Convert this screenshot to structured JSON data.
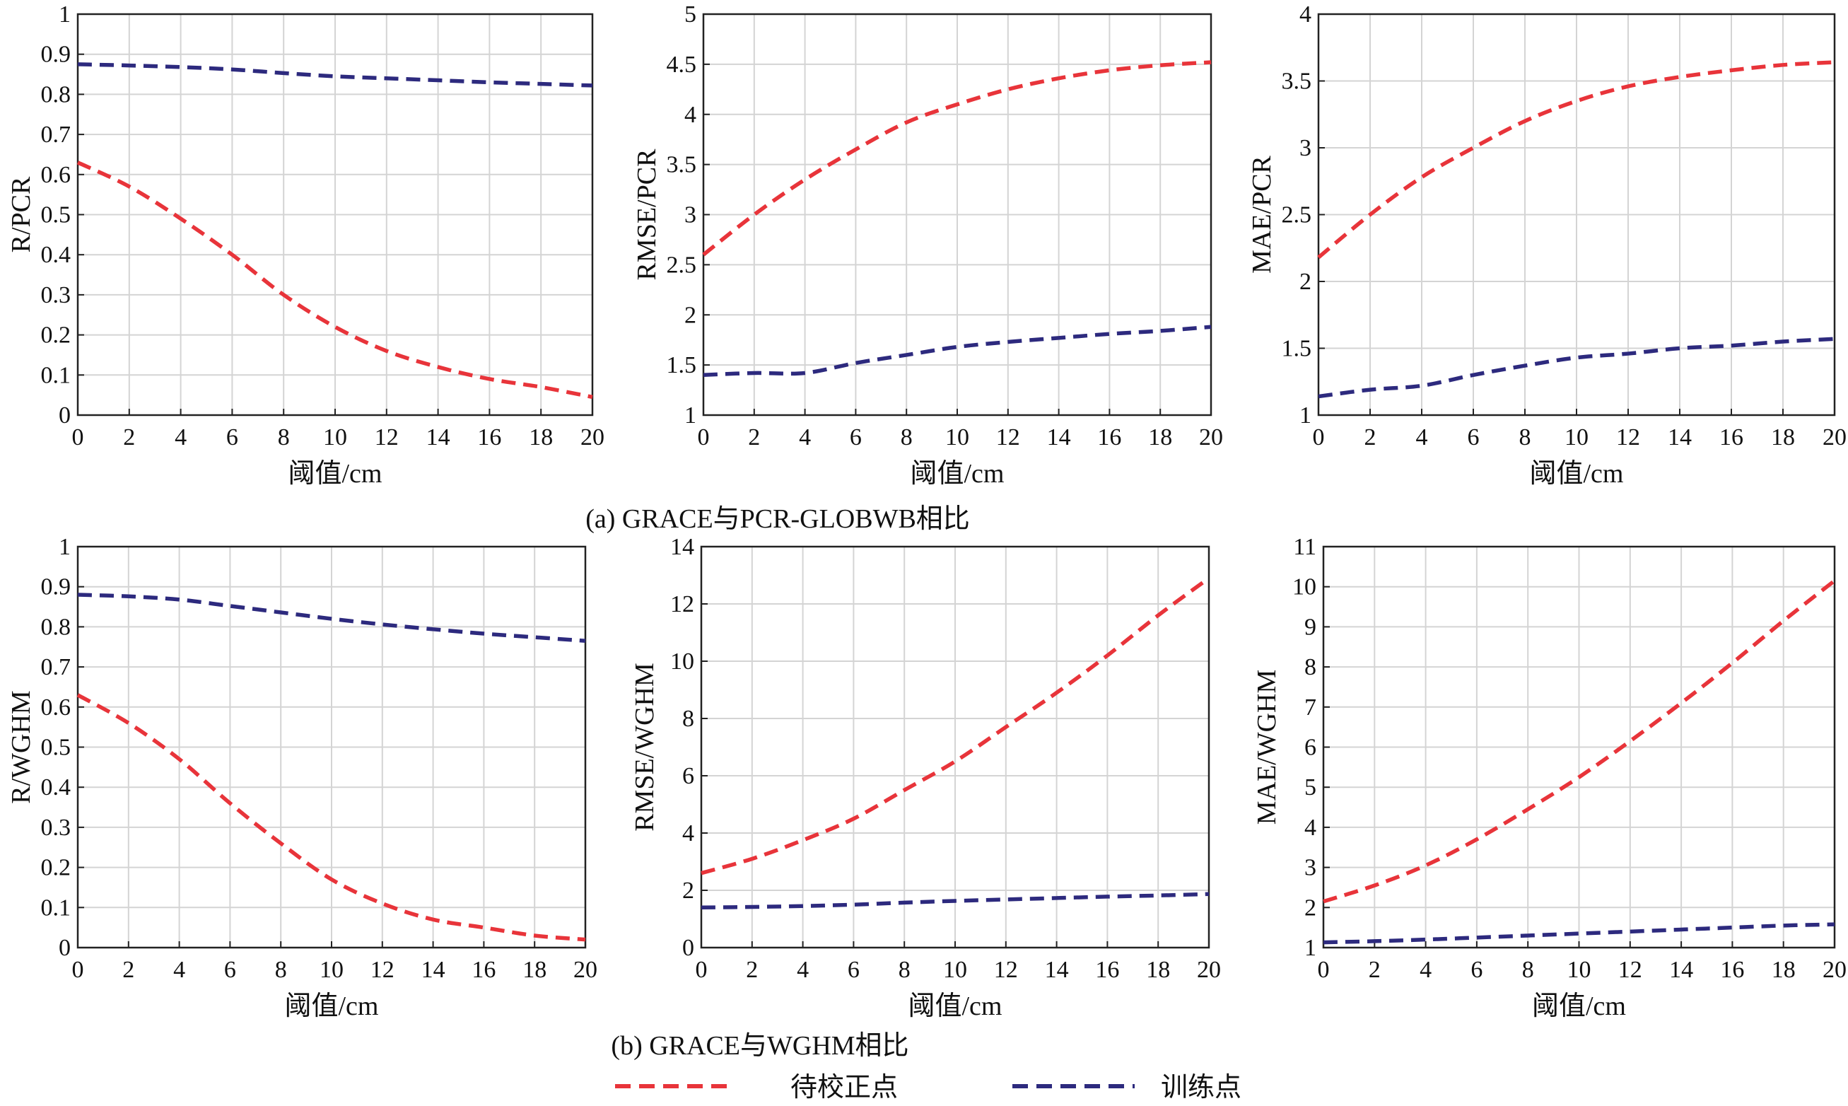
{
  "figure": {
    "caption_a": "(a) GRACE与PCR-GLOBWB相比",
    "caption_b": "(b) GRACE与WGHM相比"
  },
  "legend": {
    "items": [
      {
        "label": "待校正点",
        "color": "#e8343a"
      },
      {
        "label": "训练点",
        "color": "#2d2a7e"
      }
    ]
  },
  "colors": {
    "series_a": "#e8343a",
    "series_b": "#2d2a7e",
    "grid": "#d4d4d4",
    "axes": "#222222"
  },
  "chart_data": [
    {
      "type": "line",
      "xlabel": "阈值/cm",
      "ylabel": "R/PCR",
      "xlim": [
        0,
        20
      ],
      "ylim": [
        0,
        1
      ],
      "xticks": [
        0,
        2,
        4,
        6,
        8,
        10,
        12,
        14,
        16,
        18,
        20
      ],
      "yticks": [
        0,
        0.1,
        0.2,
        0.3,
        0.4,
        0.5,
        0.6,
        0.7,
        0.8,
        0.9,
        1
      ],
      "grid": true,
      "x": [
        0,
        2,
        4,
        6,
        8,
        10,
        12,
        14,
        16,
        18,
        20
      ],
      "series": [
        {
          "name": "待校正点",
          "values": [
            0.63,
            0.57,
            0.49,
            0.4,
            0.3,
            0.22,
            0.16,
            0.12,
            0.09,
            0.07,
            0.045
          ]
        },
        {
          "name": "训练点",
          "values": [
            0.875,
            0.872,
            0.868,
            0.862,
            0.853,
            0.845,
            0.84,
            0.835,
            0.83,
            0.826,
            0.822
          ]
        }
      ]
    },
    {
      "type": "line",
      "xlabel": "阈值/cm",
      "ylabel": "RMSE/PCR",
      "xlim": [
        0,
        20
      ],
      "ylim": [
        1,
        5
      ],
      "xticks": [
        0,
        2,
        4,
        6,
        8,
        10,
        12,
        14,
        16,
        18,
        20
      ],
      "yticks": [
        1,
        1.5,
        2,
        2.5,
        3,
        3.5,
        4,
        4.5,
        5
      ],
      "grid": true,
      "x": [
        0,
        2,
        4,
        6,
        8,
        10,
        12,
        14,
        16,
        18,
        20
      ],
      "series": [
        {
          "name": "待校正点",
          "values": [
            2.6,
            3.0,
            3.35,
            3.65,
            3.92,
            4.1,
            4.25,
            4.36,
            4.44,
            4.49,
            4.52
          ]
        },
        {
          "name": "训练点",
          "values": [
            1.4,
            1.42,
            1.42,
            1.52,
            1.6,
            1.68,
            1.73,
            1.77,
            1.81,
            1.84,
            1.88
          ]
        }
      ]
    },
    {
      "type": "line",
      "xlabel": "阈值/cm",
      "ylabel": "MAE/PCR",
      "xlim": [
        0,
        20
      ],
      "ylim": [
        1,
        4
      ],
      "xticks": [
        0,
        2,
        4,
        6,
        8,
        10,
        12,
        14,
        16,
        18,
        20
      ],
      "yticks": [
        1,
        1.5,
        2,
        2.5,
        3,
        3.5,
        4
      ],
      "grid": true,
      "x": [
        0,
        2,
        4,
        6,
        8,
        10,
        12,
        14,
        16,
        18,
        20
      ],
      "series": [
        {
          "name": "待校正点",
          "values": [
            2.18,
            2.5,
            2.78,
            3.0,
            3.2,
            3.35,
            3.46,
            3.53,
            3.58,
            3.62,
            3.64
          ]
        },
        {
          "name": "训练点",
          "values": [
            1.14,
            1.19,
            1.22,
            1.3,
            1.37,
            1.43,
            1.46,
            1.5,
            1.52,
            1.55,
            1.57
          ]
        }
      ]
    },
    {
      "type": "line",
      "xlabel": "阈值/cm",
      "ylabel": "R/WGHM",
      "xlim": [
        0,
        20
      ],
      "ylim": [
        0,
        1
      ],
      "xticks": [
        0,
        2,
        4,
        6,
        8,
        10,
        12,
        14,
        16,
        18,
        20
      ],
      "yticks": [
        0,
        0.1,
        0.2,
        0.3,
        0.4,
        0.5,
        0.6,
        0.7,
        0.8,
        0.9,
        1
      ],
      "grid": true,
      "x": [
        0,
        2,
        4,
        6,
        8,
        10,
        12,
        14,
        16,
        18,
        20
      ],
      "series": [
        {
          "name": "待校正点",
          "values": [
            0.63,
            0.56,
            0.47,
            0.36,
            0.26,
            0.17,
            0.11,
            0.07,
            0.05,
            0.03,
            0.02
          ]
        },
        {
          "name": "训练点",
          "values": [
            0.88,
            0.876,
            0.868,
            0.852,
            0.836,
            0.82,
            0.806,
            0.794,
            0.783,
            0.774,
            0.765
          ]
        }
      ]
    },
    {
      "type": "line",
      "xlabel": "阈值/cm",
      "ylabel": "RMSE/WGHM",
      "xlim": [
        0,
        20
      ],
      "ylim": [
        0,
        14
      ],
      "xticks": [
        0,
        2,
        4,
        6,
        8,
        10,
        12,
        14,
        16,
        18,
        20
      ],
      "yticks": [
        0,
        2,
        4,
        6,
        8,
        10,
        12,
        14
      ],
      "grid": true,
      "x": [
        0,
        2,
        4,
        6,
        8,
        10,
        12,
        14,
        16,
        18,
        20
      ],
      "series": [
        {
          "name": "待校正点",
          "values": [
            2.6,
            3.1,
            3.75,
            4.5,
            5.5,
            6.5,
            7.7,
            8.9,
            10.2,
            11.6,
            12.9
          ]
        },
        {
          "name": "训练点",
          "values": [
            1.4,
            1.42,
            1.45,
            1.5,
            1.57,
            1.63,
            1.68,
            1.73,
            1.78,
            1.82,
            1.87
          ]
        }
      ]
    },
    {
      "type": "line",
      "xlabel": "阈值/cm",
      "ylabel": "MAE/WGHM",
      "xlim": [
        0,
        20
      ],
      "ylim": [
        1,
        11
      ],
      "xticks": [
        0,
        2,
        4,
        6,
        8,
        10,
        12,
        14,
        16,
        18,
        20
      ],
      "yticks": [
        1,
        2,
        3,
        4,
        5,
        6,
        7,
        8,
        9,
        10,
        11
      ],
      "grid": true,
      "x": [
        0,
        2,
        4,
        6,
        8,
        10,
        12,
        14,
        16,
        18,
        20
      ],
      "series": [
        {
          "name": "待校正点",
          "values": [
            2.15,
            2.55,
            3.05,
            3.7,
            4.45,
            5.25,
            6.15,
            7.1,
            8.1,
            9.15,
            10.15
          ]
        },
        {
          "name": "训练点",
          "values": [
            1.13,
            1.16,
            1.2,
            1.25,
            1.3,
            1.35,
            1.4,
            1.45,
            1.5,
            1.55,
            1.58
          ]
        }
      ]
    }
  ]
}
